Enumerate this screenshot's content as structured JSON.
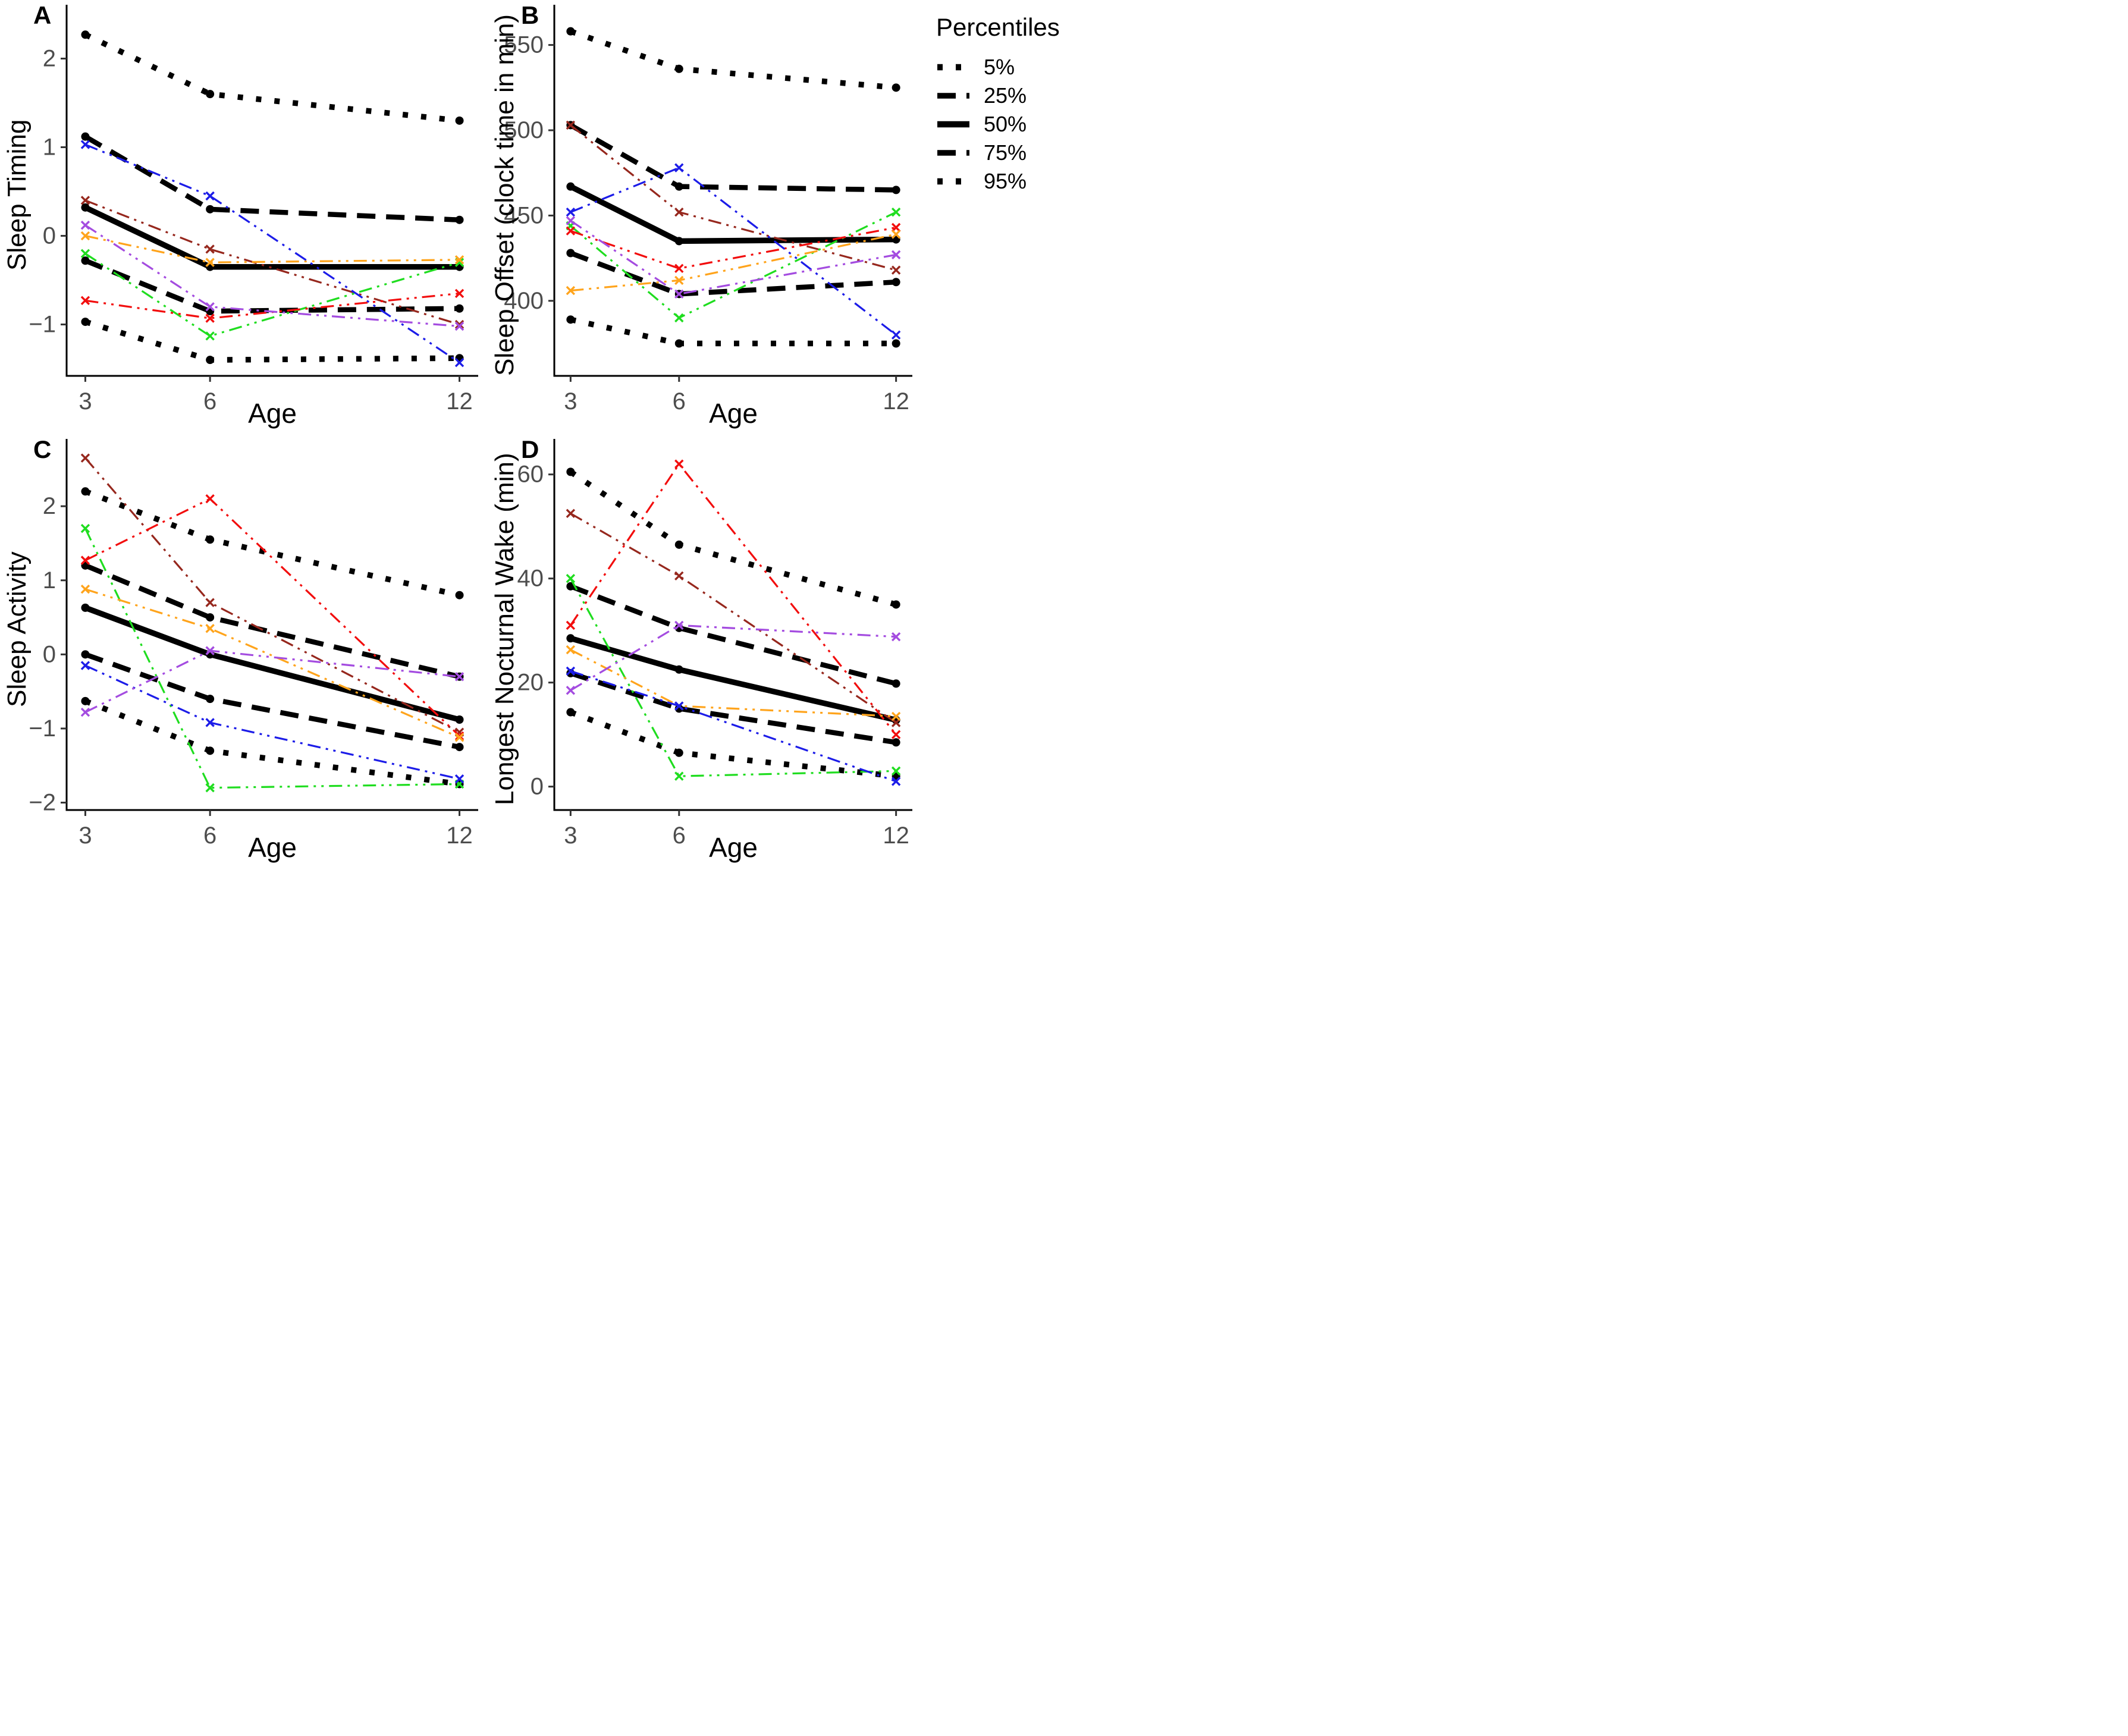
{
  "legend": {
    "title": "Percentiles",
    "items": [
      {
        "label": "5%",
        "style": "dotted"
      },
      {
        "label": "25%",
        "style": "dashed"
      },
      {
        "label": "50%",
        "style": "solid"
      },
      {
        "label": "75%",
        "style": "dashed"
      },
      {
        "label": "95%",
        "style": "dotted"
      }
    ]
  },
  "colors": {
    "black": "#000000",
    "tick_label": "#4d4d4d",
    "blue": "#1c1ce8",
    "red": "#f20d0d",
    "green": "#1fdd1f",
    "orange": "#ffa41c",
    "purple": "#a44ce0",
    "darkred": "#96271d"
  },
  "chart_data": [
    {
      "type": "line",
      "panel_label": "A",
      "xlabel": "Age",
      "ylabel": "Sleep Timing",
      "x": [
        3,
        6,
        12
      ],
      "xticks": [
        3,
        6,
        12
      ],
      "yticks": [
        -1,
        0,
        1,
        2
      ],
      "xlim": [
        2.55,
        12.45
      ],
      "ylim": [
        -1.58,
        2.5
      ],
      "grid": false,
      "percentiles": [
        {
          "name": "5%",
          "style": "dotted",
          "values": [
            -0.97,
            -1.4,
            -1.38
          ]
        },
        {
          "name": "25%",
          "style": "dashed",
          "values": [
            -0.28,
            -0.85,
            -0.82
          ]
        },
        {
          "name": "50%",
          "style": "solid",
          "values": [
            0.32,
            -0.35,
            -0.35
          ]
        },
        {
          "name": "75%",
          "style": "dashed",
          "values": [
            1.12,
            0.3,
            0.18
          ]
        },
        {
          "name": "95%",
          "style": "dotted",
          "values": [
            2.27,
            1.6,
            1.3
          ]
        }
      ],
      "individuals": [
        {
          "color": "darkred",
          "values": [
            0.4,
            -0.15,
            -1.0
          ]
        },
        {
          "color": "green",
          "values": [
            -0.2,
            -1.13,
            -0.3
          ]
        },
        {
          "color": "red",
          "values": [
            -0.73,
            -0.93,
            -0.65
          ]
        },
        {
          "color": "orange",
          "values": [
            0.0,
            -0.3,
            -0.27
          ]
        },
        {
          "color": "blue",
          "values": [
            1.03,
            0.45,
            -1.43
          ]
        },
        {
          "color": "purple",
          "values": [
            0.12,
            -0.8,
            -1.02
          ]
        }
      ]
    },
    {
      "type": "line",
      "panel_label": "B",
      "xlabel": "Age",
      "ylabel": "Sleep Offset (clock time in min)",
      "x": [
        3,
        6,
        12
      ],
      "xticks": [
        3,
        6,
        12
      ],
      "yticks": [
        400,
        450,
        500,
        550
      ],
      "xlim": [
        2.55,
        12.45
      ],
      "ylim": [
        356,
        568
      ],
      "grid": false,
      "percentiles": [
        {
          "name": "5%",
          "style": "dotted",
          "values": [
            389,
            375,
            375
          ]
        },
        {
          "name": "25%",
          "style": "dashed",
          "values": [
            428,
            404,
            411
          ]
        },
        {
          "name": "50%",
          "style": "solid",
          "values": [
            467,
            435,
            436
          ]
        },
        {
          "name": "75%",
          "style": "dashed",
          "values": [
            503,
            467,
            465
          ]
        },
        {
          "name": "95%",
          "style": "dotted",
          "values": [
            558,
            536,
            525
          ]
        }
      ],
      "individuals": [
        {
          "color": "darkred",
          "values": [
            503,
            452,
            418
          ]
        },
        {
          "color": "green",
          "values": [
            444,
            390,
            452
          ]
        },
        {
          "color": "red",
          "values": [
            441,
            419,
            443
          ]
        },
        {
          "color": "orange",
          "values": [
            406,
            412,
            439
          ]
        },
        {
          "color": "blue",
          "values": [
            452,
            478,
            380
          ]
        },
        {
          "color": "purple",
          "values": [
            447,
            404,
            427
          ]
        }
      ]
    },
    {
      "type": "line",
      "panel_label": "C",
      "xlabel": "Age",
      "ylabel": "Sleep Activity",
      "x": [
        3,
        6,
        12
      ],
      "xticks": [
        3,
        6,
        12
      ],
      "yticks": [
        -2,
        -1,
        0,
        1,
        2
      ],
      "xlim": [
        2.55,
        12.45
      ],
      "ylim": [
        -2.1,
        2.78
      ],
      "grid": false,
      "percentiles": [
        {
          "name": "5%",
          "style": "dotted",
          "values": [
            -0.63,
            -1.3,
            -1.75
          ]
        },
        {
          "name": "25%",
          "style": "dashed",
          "values": [
            0.0,
            -0.6,
            -1.25
          ]
        },
        {
          "name": "50%",
          "style": "solid",
          "values": [
            0.63,
            0.0,
            -0.88
          ]
        },
        {
          "name": "75%",
          "style": "dashed",
          "values": [
            1.2,
            0.5,
            -0.3
          ]
        },
        {
          "name": "95%",
          "style": "dotted",
          "values": [
            2.2,
            1.55,
            0.8
          ]
        }
      ],
      "individuals": [
        {
          "color": "darkred",
          "values": [
            2.65,
            0.7,
            -1.05
          ]
        },
        {
          "color": "green",
          "values": [
            1.7,
            -1.8,
            -1.75
          ]
        },
        {
          "color": "red",
          "values": [
            1.27,
            2.1,
            -1.1
          ]
        },
        {
          "color": "orange",
          "values": [
            0.88,
            0.35,
            -1.12
          ]
        },
        {
          "color": "blue",
          "values": [
            -0.15,
            -0.92,
            -1.68
          ]
        },
        {
          "color": "purple",
          "values": [
            -0.78,
            0.05,
            -0.3
          ]
        }
      ]
    },
    {
      "type": "line",
      "panel_label": "D",
      "xlabel": "Age",
      "ylabel": "Longest Nocturnal Wake (min)",
      "x": [
        3,
        6,
        12
      ],
      "xticks": [
        3,
        6,
        12
      ],
      "yticks": [
        0,
        20,
        40,
        60
      ],
      "xlim": [
        2.55,
        12.45
      ],
      "ylim": [
        -4.5,
        65
      ],
      "grid": false,
      "percentiles": [
        {
          "name": "5%",
          "style": "dotted",
          "values": [
            14.3,
            6.5,
            2
          ]
        },
        {
          "name": "25%",
          "style": "dashed",
          "values": [
            21.8,
            15,
            8.5
          ]
        },
        {
          "name": "50%",
          "style": "solid",
          "values": [
            28.5,
            22.5,
            12.8
          ]
        },
        {
          "name": "75%",
          "style": "dashed",
          "values": [
            38.5,
            30.5,
            19.8
          ]
        },
        {
          "name": "95%",
          "style": "dotted",
          "values": [
            60.5,
            46.5,
            35
          ]
        }
      ],
      "individuals": [
        {
          "color": "darkred",
          "values": [
            52.5,
            40.5,
            12.3
          ]
        },
        {
          "color": "green",
          "values": [
            40,
            2,
            3
          ]
        },
        {
          "color": "red",
          "values": [
            31,
            62,
            10
          ]
        },
        {
          "color": "orange",
          "values": [
            26.3,
            15.5,
            13.5
          ]
        },
        {
          "color": "blue",
          "values": [
            22.2,
            15.5,
            1
          ]
        },
        {
          "color": "purple",
          "values": [
            18.5,
            31,
            28.8
          ]
        }
      ]
    }
  ]
}
